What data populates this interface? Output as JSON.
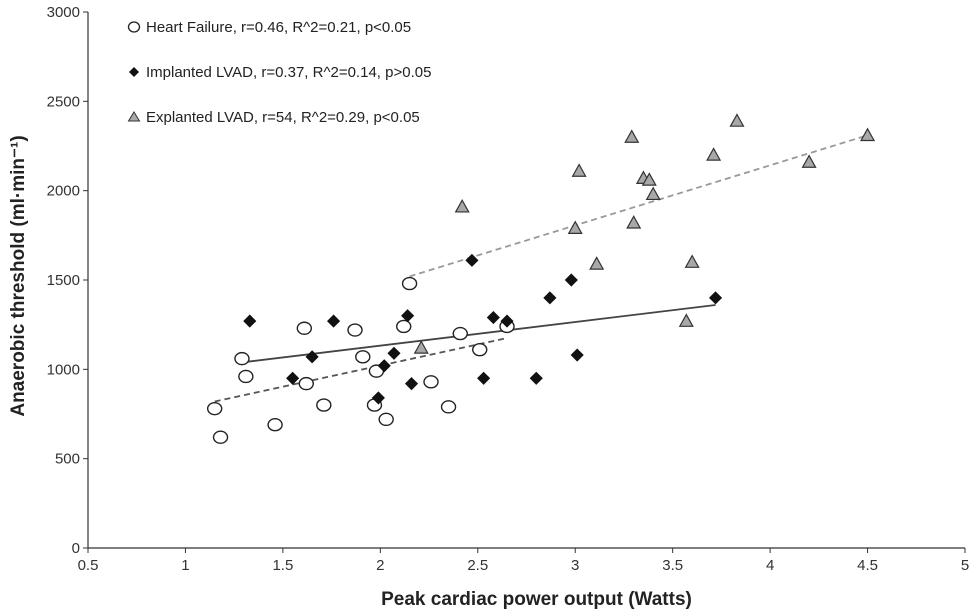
{
  "chart_data": {
    "type": "scatter",
    "xlabel": "Peak cardiac power output (Watts)",
    "ylabel": "Anaerobic threshold (ml·min⁻¹)",
    "xlim": [
      0.5,
      5
    ],
    "ylim": [
      0,
      3000
    ],
    "xticks": [
      "0.5",
      "1",
      "1.5",
      "2",
      "2.5",
      "3",
      "3.5",
      "4",
      "4.5",
      "5"
    ],
    "yticks": [
      "0",
      "500",
      "1000",
      "1500",
      "2000",
      "2500",
      "3000"
    ],
    "legend_position": "top-left",
    "series": [
      {
        "name": "Heart Failure, r=0.46, R^2=0.21, p<0.05",
        "marker": "open-circle",
        "color": "#000000",
        "points": [
          [
            1.15,
            780
          ],
          [
            1.18,
            620
          ],
          [
            1.29,
            1060
          ],
          [
            1.31,
            960
          ],
          [
            1.46,
            690
          ],
          [
            1.61,
            1230
          ],
          [
            1.62,
            920
          ],
          [
            1.71,
            800
          ],
          [
            1.87,
            1220
          ],
          [
            1.91,
            1070
          ],
          [
            1.97,
            800
          ],
          [
            1.98,
            990
          ],
          [
            2.03,
            720
          ],
          [
            2.12,
            1240
          ],
          [
            2.15,
            1480
          ],
          [
            2.26,
            930
          ],
          [
            2.35,
            790
          ],
          [
            2.41,
            1200
          ],
          [
            2.51,
            1110
          ],
          [
            2.65,
            1240
          ]
        ],
        "trendline": {
          "x": [
            1.15,
            2.65
          ],
          "y": [
            820,
            1175
          ],
          "style": "dashed"
        }
      },
      {
        "name": "Implanted LVAD, r=0.37, R^2=0.14, p>0.05",
        "marker": "filled-diamond",
        "color": "#000000",
        "points": [
          [
            1.33,
            1270
          ],
          [
            1.55,
            950
          ],
          [
            1.65,
            1070
          ],
          [
            1.76,
            1270
          ],
          [
            1.99,
            840
          ],
          [
            2.02,
            1020
          ],
          [
            2.07,
            1090
          ],
          [
            2.14,
            1300
          ],
          [
            2.16,
            920
          ],
          [
            2.47,
            1610
          ],
          [
            2.53,
            950
          ],
          [
            2.58,
            1290
          ],
          [
            2.65,
            1270
          ],
          [
            2.8,
            950
          ],
          [
            2.87,
            1400
          ],
          [
            2.98,
            1500
          ],
          [
            3.01,
            1080
          ],
          [
            3.72,
            1400
          ]
        ],
        "trendline": {
          "x": [
            1.3,
            3.72
          ],
          "y": [
            1040,
            1360
          ],
          "style": "solid"
        }
      },
      {
        "name": "Explanted LVAD, r=54, R^2=0.29, p<0.05",
        "marker": "gray-triangle",
        "color": "#a8a8a8",
        "points": [
          [
            2.21,
            1120
          ],
          [
            2.42,
            1910
          ],
          [
            3.0,
            1790
          ],
          [
            3.02,
            2110
          ],
          [
            3.11,
            1590
          ],
          [
            3.29,
            2300
          ],
          [
            3.3,
            1820
          ],
          [
            3.35,
            2070
          ],
          [
            3.38,
            2060
          ],
          [
            3.4,
            1980
          ],
          [
            3.57,
            1270
          ],
          [
            3.6,
            1600
          ],
          [
            3.71,
            2200
          ],
          [
            3.83,
            2390
          ],
          [
            4.2,
            2160
          ],
          [
            4.5,
            2310
          ]
        ],
        "trendline": {
          "x": [
            2.15,
            4.5
          ],
          "y": [
            1520,
            2310
          ],
          "style": "dashed"
        }
      }
    ]
  }
}
